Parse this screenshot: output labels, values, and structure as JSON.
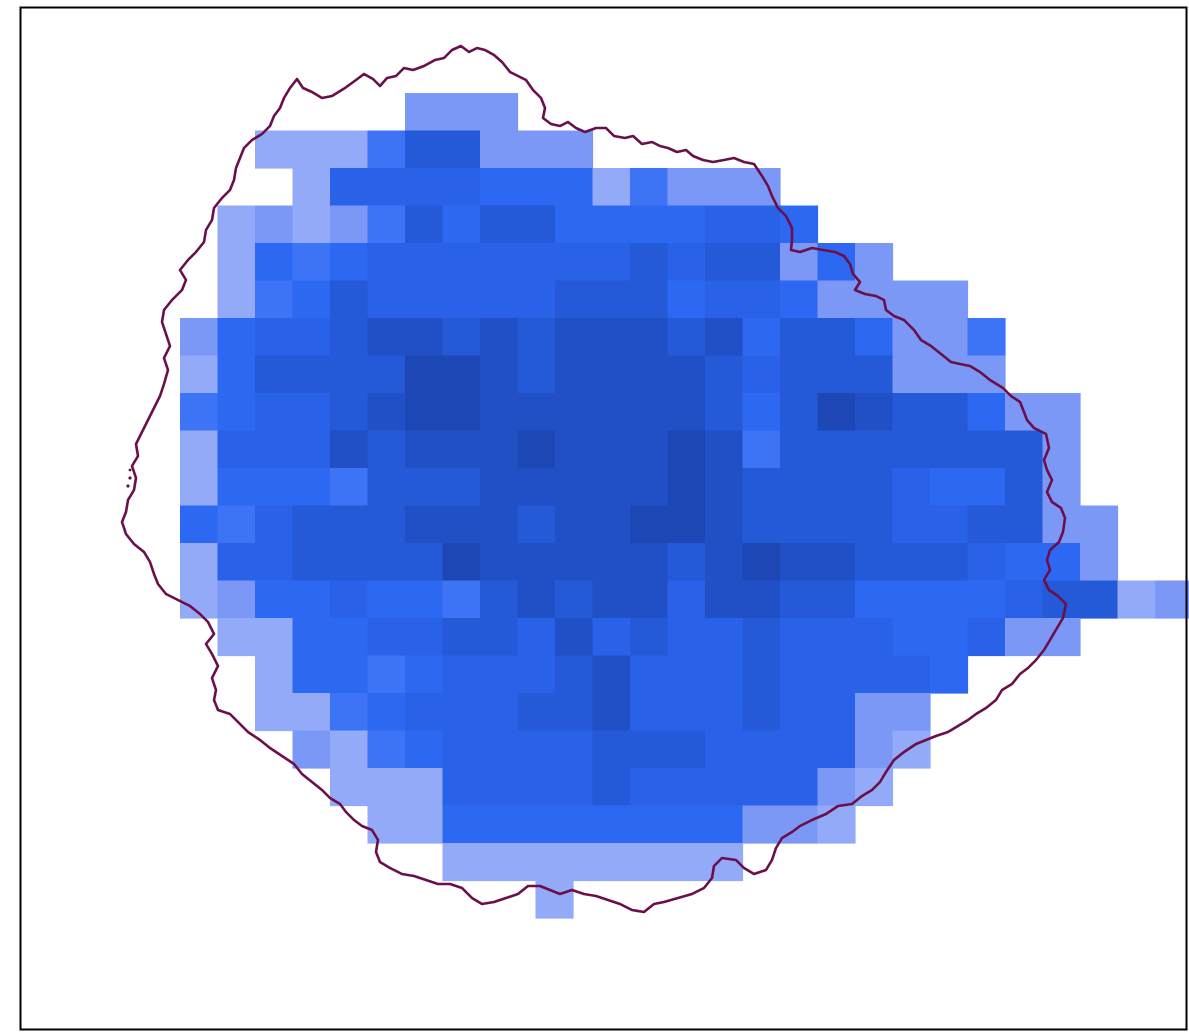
{
  "map": {
    "cell_colors": {
      "pale": "#93aaf8",
      "light": "#7b98f7",
      "mid": "#3d73f5",
      "bright": "#2d68f2",
      "blue": "#2962e8",
      "deep": "#245ad8",
      "darker": "#204fc6",
      "darkest": "#1c47b4"
    },
    "coastline_color": "#6b0f4a",
    "frame_color": "#000000"
  }
}
